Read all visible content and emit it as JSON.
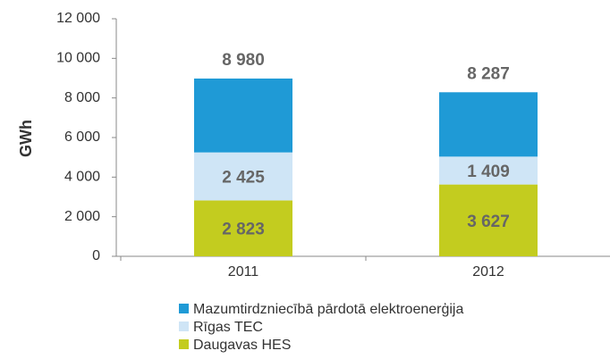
{
  "chart_data": {
    "type": "stacked_bar",
    "y_label": "GWh",
    "categories": [
      "2011",
      "2012"
    ],
    "series": [
      {
        "name": "Daugavas HES",
        "color": "#c3cc1f",
        "values": [
          2823,
          3627
        ],
        "value_labels": [
          "2 823",
          "3 627"
        ]
      },
      {
        "name": "Rīgas TEC",
        "color": "#cfe5f6",
        "values": [
          2425,
          1409
        ],
        "value_labels": [
          "2 425",
          "1 409"
        ]
      },
      {
        "name": "Mazumtirdzniecībā pārdotā elektroenerģija",
        "color": "#1f9ad6",
        "values": [
          3732,
          3251
        ]
      }
    ],
    "totals": [
      8980,
      8287
    ],
    "total_labels": [
      "8 980",
      "8 287"
    ],
    "ylim": [
      0,
      12000
    ],
    "yticks": [
      0,
      {
        "value": 2000,
        "label": "2 000"
      },
      {
        "value": 4000,
        "label": "4 000"
      },
      {
        "value": 6000,
        "label": "6 000"
      },
      {
        "value": 8000,
        "label": "8 000"
      },
      {
        "value": 10000,
        "label": "10 000"
      },
      {
        "value": 12000,
        "label": "12 000"
      }
    ],
    "grid": false
  }
}
